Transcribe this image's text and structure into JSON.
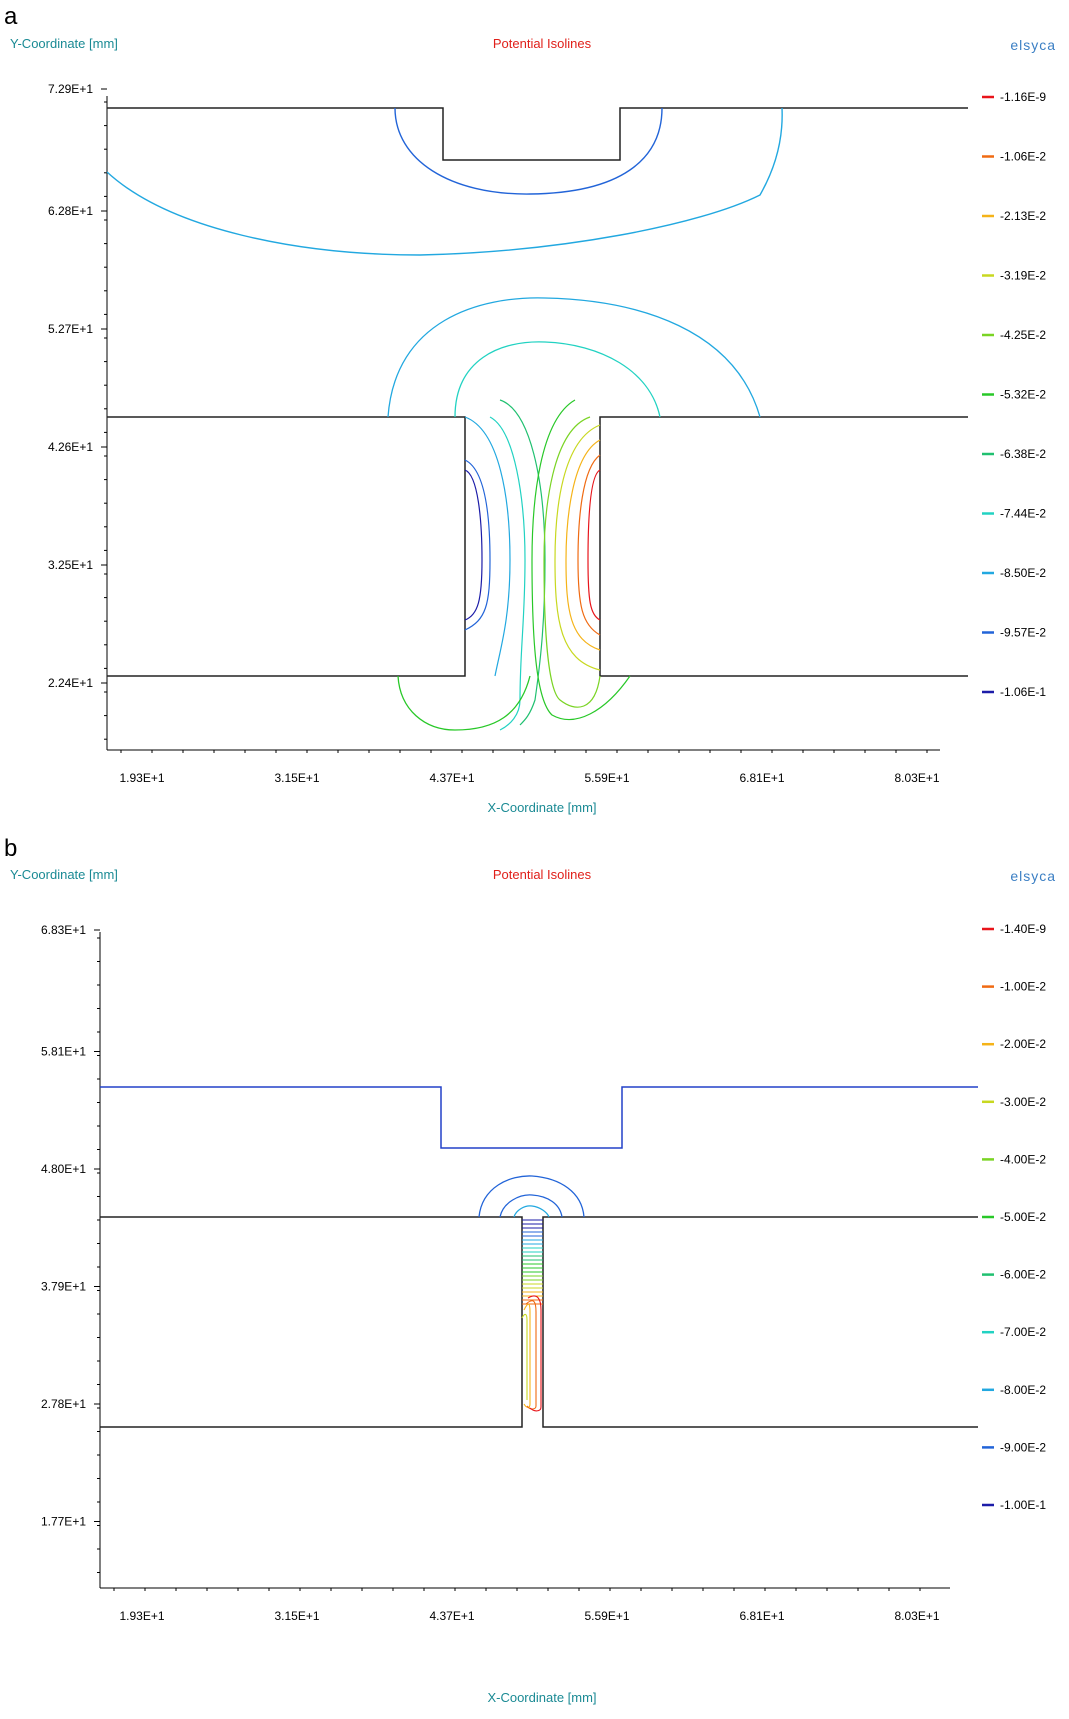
{
  "chart_data": [
    {
      "type": "contour",
      "panel_letter": "a",
      "title": "Potential Isolines",
      "xlabel": "X-Coordinate [mm]",
      "ylabel": "Y-Coordinate [mm]",
      "logo": "elsyca",
      "x_ticks": [
        "1.93E+1",
        "3.15E+1",
        "4.37E+1",
        "5.59E+1",
        "6.81E+1",
        "8.03E+1"
      ],
      "y_ticks": [
        "7.29E+1",
        "6.28E+1",
        "5.27E+1",
        "4.26E+1",
        "3.25E+1",
        "2.24E+1"
      ],
      "xlim": [
        19.3,
        80.3
      ],
      "ylim": [
        22.4,
        72.9
      ],
      "legend": [
        {
          "label": "-1.16E-9",
          "color": "#e8141a"
        },
        {
          "label": "-1.06E-2",
          "color": "#f06a12"
        },
        {
          "label": "-2.13E-2",
          "color": "#f5b318"
        },
        {
          "label": "-3.19E-2",
          "color": "#c8d820"
        },
        {
          "label": "-4.25E-2",
          "color": "#7ad424"
        },
        {
          "label": "-5.32E-2",
          "color": "#28c828"
        },
        {
          "label": "-6.38E-2",
          "color": "#20c070"
        },
        {
          "label": "-7.44E-2",
          "color": "#22d2c2"
        },
        {
          "label": "-8.50E-2",
          "color": "#22a8e0"
        },
        {
          "label": "-9.57E-2",
          "color": "#2264d8"
        },
        {
          "label": "-1.06E-1",
          "color": "#1c1ca8"
        }
      ]
    },
    {
      "type": "contour",
      "panel_letter": "b",
      "title": "Potential Isolines",
      "xlabel": "X-Coordinate [mm]",
      "ylabel": "Y-Coordinate [mm]",
      "logo": "elsyca",
      "x_ticks": [
        "1.93E+1",
        "3.15E+1",
        "4.37E+1",
        "5.59E+1",
        "6.81E+1",
        "8.03E+1"
      ],
      "y_ticks": [
        "6.83E+1",
        "5.81E+1",
        "4.80E+1",
        "3.79E+1",
        "2.78E+1",
        "1.77E+1"
      ],
      "xlim": [
        19.3,
        80.3
      ],
      "ylim": [
        17.7,
        68.3
      ],
      "legend": [
        {
          "label": "-1.40E-9",
          "color": "#e8141a"
        },
        {
          "label": "-1.00E-2",
          "color": "#f06a12"
        },
        {
          "label": "-2.00E-2",
          "color": "#f5b318"
        },
        {
          "label": "-3.00E-2",
          "color": "#c8d820"
        },
        {
          "label": "-4.00E-2",
          "color": "#7ad424"
        },
        {
          "label": "-5.00E-2",
          "color": "#28c828"
        },
        {
          "label": "-6.00E-2",
          "color": "#20c070"
        },
        {
          "label": "-7.00E-2",
          "color": "#22d2c2"
        },
        {
          "label": "-8.00E-2",
          "color": "#22a8e0"
        },
        {
          "label": "-9.00E-2",
          "color": "#2264d8"
        },
        {
          "label": "-1.00E-1",
          "color": "#1c1ca8"
        }
      ]
    }
  ]
}
